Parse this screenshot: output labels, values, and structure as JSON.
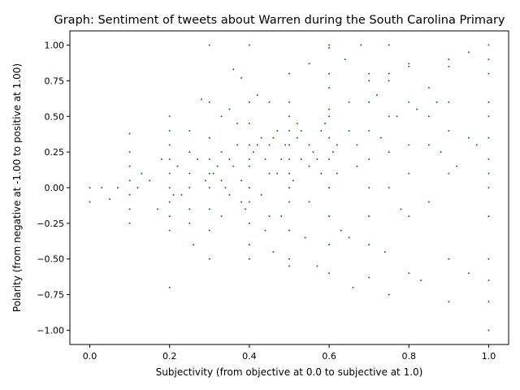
{
  "chart_data": {
    "type": "scatter",
    "title": "Graph: Sentiment of tweets about Warren during the South Carolina Primary",
    "xlabel": "Subjectivity (from objective at 0.0 to subjective at 1.0)",
    "ylabel": "Polarity (from negative at -1.00 to positive at 1.00)",
    "xlim": [
      -0.05,
      1.05
    ],
    "ylim": [
      -1.1,
      1.1
    ],
    "xticks": [
      0.0,
      0.2,
      0.4,
      0.6,
      0.8,
      1.0
    ],
    "xtick_labels": [
      "0.0",
      "0.2",
      "0.4",
      "0.6",
      "0.8",
      "1.0"
    ],
    "yticks": [
      -1.0,
      -0.75,
      -0.5,
      -0.25,
      0.0,
      0.25,
      0.5,
      0.75,
      1.0
    ],
    "ytick_labels": [
      "−1.00",
      "−0.75",
      "−0.50",
      "−0.25",
      "0.00",
      "0.25",
      "0.50",
      "0.75",
      "1.00"
    ],
    "grid": false,
    "marker_color": "#008000",
    "series": [
      {
        "x": [
          0.0,
          0.0,
          0.03,
          0.05,
          0.07,
          0.1,
          0.1,
          0.1,
          0.1,
          0.1,
          0.1,
          0.1,
          0.12,
          0.13,
          0.15,
          0.17,
          0.18,
          0.2,
          0.2,
          0.2,
          0.2,
          0.2,
          0.2,
          0.2,
          0.2,
          0.2,
          0.2,
          0.22,
          0.23,
          0.25,
          0.25,
          0.25,
          0.25,
          0.25,
          0.25,
          0.26,
          0.27,
          0.28,
          0.3,
          0.3,
          0.3,
          0.3,
          0.3,
          0.3,
          0.3,
          0.3,
          0.3,
          0.32,
          0.33,
          0.33,
          0.33,
          0.33,
          0.35,
          0.35,
          0.35,
          0.36,
          0.37,
          0.38,
          0.38,
          0.4,
          0.4,
          0.4,
          0.4,
          0.4,
          0.4,
          0.4,
          0.4,
          0.4,
          0.4,
          0.4,
          0.42,
          0.43,
          0.44,
          0.45,
          0.45,
          0.45,
          0.45,
          0.46,
          0.47,
          0.48,
          0.5,
          0.5,
          0.5,
          0.5,
          0.5,
          0.5,
          0.5,
          0.5,
          0.5,
          0.5,
          0.5,
          0.5,
          0.52,
          0.53,
          0.54,
          0.55,
          0.55,
          0.55,
          0.56,
          0.57,
          0.58,
          0.6,
          0.6,
          0.6,
          0.6,
          0.6,
          0.6,
          0.6,
          0.6,
          0.6,
          0.6,
          0.6,
          0.6,
          0.62,
          0.63,
          0.64,
          0.65,
          0.65,
          0.65,
          0.66,
          0.67,
          0.67,
          0.68,
          0.7,
          0.7,
          0.7,
          0.7,
          0.7,
          0.7,
          0.7,
          0.7,
          0.7,
          0.72,
          0.73,
          0.74,
          0.75,
          0.75,
          0.75,
          0.75,
          0.75,
          0.75,
          0.75,
          0.77,
          0.78,
          0.8,
          0.8,
          0.8,
          0.8,
          0.8,
          0.8,
          0.8,
          0.82,
          0.83,
          0.85,
          0.85,
          0.85,
          0.85,
          0.87,
          0.88,
          0.9,
          0.9,
          0.9,
          0.9,
          0.9,
          0.9,
          0.9,
          0.92,
          0.95,
          0.95,
          0.95,
          0.97,
          1.0,
          1.0,
          1.0,
          1.0,
          1.0,
          1.0,
          1.0,
          1.0,
          1.0,
          1.0,
          1.0,
          1.0,
          1.0,
          1.0,
          0.21,
          0.36,
          0.41,
          0.38,
          0.49,
          0.47,
          0.52,
          0.43,
          0.58,
          0.61,
          0.55,
          0.34,
          0.29,
          0.44,
          0.39,
          0.51,
          0.46,
          0.57,
          0.62,
          0.59,
          0.31,
          0.42,
          0.48,
          0.53,
          0.37
        ],
        "y": [
          0.0,
          -0.1,
          0.0,
          -0.08,
          0.0,
          0.25,
          0.15,
          0.05,
          -0.05,
          -0.15,
          -0.25,
          0.38,
          0.0,
          0.1,
          0.05,
          -0.15,
          0.2,
          0.5,
          0.4,
          0.3,
          0.2,
          0.1,
          0.0,
          -0.1,
          -0.2,
          -0.3,
          -0.7,
          0.15,
          -0.05,
          0.4,
          0.25,
          0.1,
          0.0,
          -0.15,
          -0.25,
          -0.4,
          0.2,
          0.62,
          1.0,
          0.6,
          0.35,
          0.2,
          0.1,
          0.0,
          -0.15,
          -0.3,
          -0.5,
          0.15,
          0.5,
          0.25,
          0.05,
          -0.2,
          0.55,
          0.2,
          -0.05,
          0.83,
          0.3,
          0.77,
          -0.1,
          1.0,
          0.6,
          0.45,
          0.3,
          0.15,
          0.0,
          -0.1,
          -0.25,
          -0.4,
          -0.5,
          0.2,
          0.65,
          0.35,
          -0.3,
          0.6,
          0.3,
          0.1,
          -0.2,
          -0.45,
          0.4,
          0.2,
          0.8,
          0.6,
          0.5,
          0.4,
          0.3,
          0.2,
          0.1,
          0.0,
          -0.1,
          -0.3,
          -0.5,
          -0.55,
          0.45,
          0.2,
          -0.35,
          0.87,
          0.3,
          -0.1,
          0.25,
          -0.55,
          0.1,
          1.0,
          0.98,
          0.7,
          0.5,
          0.35,
          0.2,
          0.0,
          -0.2,
          -0.4,
          -0.6,
          0.8,
          0.55,
          0.3,
          -0.3,
          0.9,
          0.4,
          -0.35,
          0.6,
          -0.7,
          0.15,
          0.3,
          1.0,
          0.8,
          0.75,
          0.6,
          0.4,
          0.2,
          0.0,
          -0.2,
          -0.4,
          -0.63,
          0.65,
          0.35,
          -0.45,
          1.0,
          0.8,
          0.75,
          0.5,
          0.25,
          0.0,
          -0.75,
          0.5,
          -0.15,
          0.87,
          0.85,
          0.6,
          0.3,
          0.1,
          -0.2,
          -0.6,
          0.55,
          -0.65,
          0.7,
          0.5,
          0.3,
          -0.1,
          0.6,
          0.25,
          0.9,
          0.85,
          0.6,
          0.4,
          0.1,
          -0.5,
          -0.8,
          0.15,
          0.95,
          0.35,
          -0.6,
          0.3,
          1.0,
          0.9,
          0.8,
          0.6,
          0.5,
          0.35,
          0.2,
          0.1,
          0.0,
          -0.2,
          -0.5,
          -0.65,
          -0.8,
          -1.0,
          -0.05,
          0.15,
          0.25,
          0.05,
          0.3,
          0.1,
          0.35,
          -0.05,
          0.4,
          0.25,
          0.15,
          0.0,
          0.05,
          0.2,
          -0.15,
          0.05,
          0.35,
          0.2,
          0.1,
          0.45,
          0.1,
          0.3,
          -0.2,
          0.4,
          0.45
        ]
      }
    ]
  }
}
